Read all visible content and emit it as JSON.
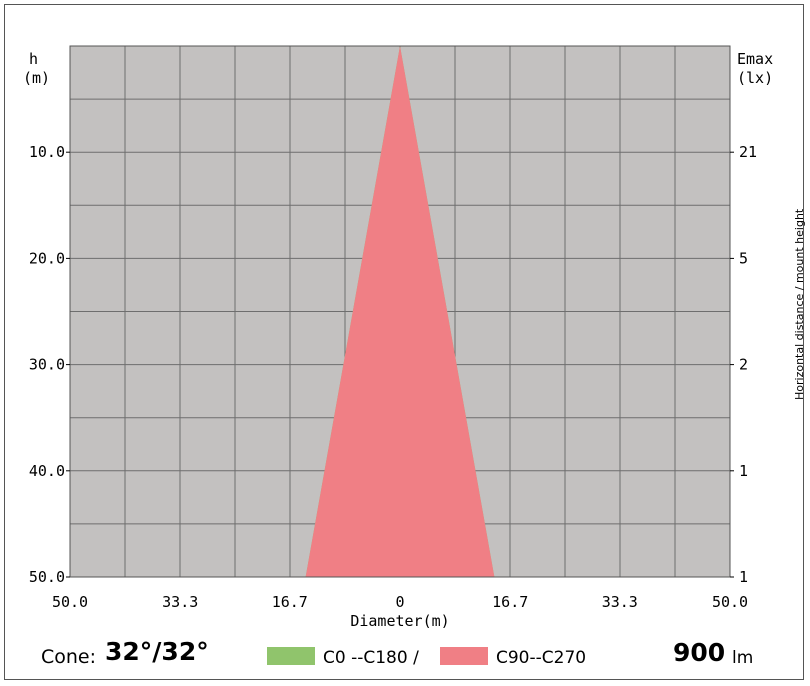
{
  "chart_data": {
    "type": "area",
    "left_header": [
      "h",
      "(m)"
    ],
    "right_header": [
      "Emax",
      "(lx)"
    ],
    "y_ticks": [
      {
        "h": 10.0,
        "label": "10.0"
      },
      {
        "h": 20.0,
        "label": "20.0"
      },
      {
        "h": 30.0,
        "label": "30.0"
      },
      {
        "h": 40.0,
        "label": "40.0"
      },
      {
        "h": 50.0,
        "label": "50.0"
      }
    ],
    "emax_ticks": [
      {
        "h": 10.0,
        "label": "21"
      },
      {
        "h": 20.0,
        "label": "5"
      },
      {
        "h": 30.0,
        "label": "2"
      },
      {
        "h": 40.0,
        "label": "1"
      },
      {
        "h": 50.0,
        "label": "1"
      }
    ],
    "x_ticks": [
      {
        "x": -50.0,
        "label": "50.0"
      },
      {
        "x": -33.3,
        "label": "33.3"
      },
      {
        "x": -16.7,
        "label": "16.7"
      },
      {
        "x": 0,
        "label": "0"
      },
      {
        "x": 16.7,
        "label": "16.7"
      },
      {
        "x": 33.3,
        "label": "33.3"
      },
      {
        "x": 50.0,
        "label": "50.0"
      }
    ],
    "xlabel": "Diameter(m)",
    "side_label": "Horizontal distance / mount height",
    "xlim": [
      -50,
      50
    ],
    "ylim": [
      0,
      50
    ],
    "grid": true,
    "series": [
      {
        "name": "C0 --C180 /",
        "color": "#90c46c",
        "diameter_at_50m": 28.6
      },
      {
        "name": "C90--C270",
        "color": "#f07f85",
        "diameter_at_50m": 28.6
      }
    ]
  },
  "footer": {
    "cone_label": "Cone:",
    "cone_value": "32°/32°",
    "legend_c0": "C0 --C180 /",
    "legend_c90": "C90--C270",
    "lumens_value": "900",
    "lumens_unit": "lm"
  },
  "colors": {
    "plot_bg": "#c3c1c0",
    "grid": "#6e6e6e",
    "c0": "#90c46c",
    "c90": "#f07f85"
  }
}
